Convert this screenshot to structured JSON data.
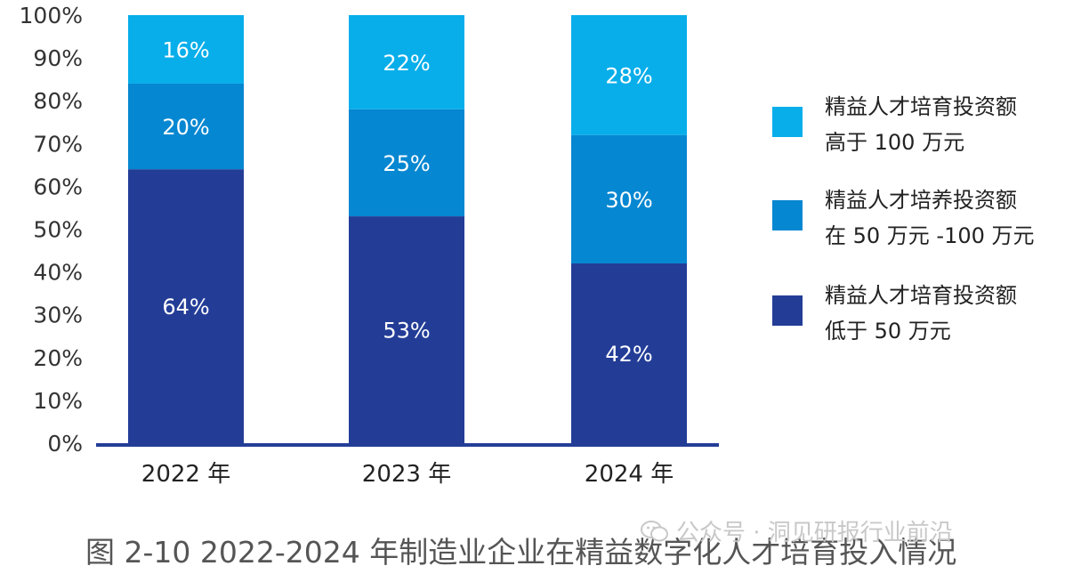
{
  "chart_data": {
    "type": "bar",
    "stacked": true,
    "categories": [
      "2022 年",
      "2023 年",
      "2024 年"
    ],
    "ylim": [
      0,
      100
    ],
    "yticks": [
      "0%",
      "10%",
      "20%",
      "30%",
      "40%",
      "50%",
      "60%",
      "70%",
      "80%",
      "90%",
      "100%"
    ],
    "series": [
      {
        "name_lines": [
          "精益人才培育投资额",
          "低于 50 万元"
        ],
        "color": "#233d97",
        "values": [
          64,
          53,
          42
        ],
        "labels": [
          "64%",
          "53%",
          "42%"
        ]
      },
      {
        "name_lines": [
          "精益人才培养投资额",
          "在 50 万元 -100 万元"
        ],
        "color": "#0687d1",
        "values": [
          20,
          25,
          30
        ],
        "labels": [
          "20%",
          "25%",
          "30%"
        ]
      },
      {
        "name_lines": [
          "精益人才培育投资额",
          "高于 100 万元"
        ],
        "color": "#07aeea",
        "values": [
          16,
          22,
          28
        ],
        "labels": [
          "16%",
          "22%",
          "28%"
        ]
      }
    ],
    "legend_position": "right",
    "grid": false
  },
  "caption": "图 2-10 2022-2024 年制造业企业在精益数字化人才培育投入情况",
  "watermark": "公众号 · 洞见研报行业前沿"
}
